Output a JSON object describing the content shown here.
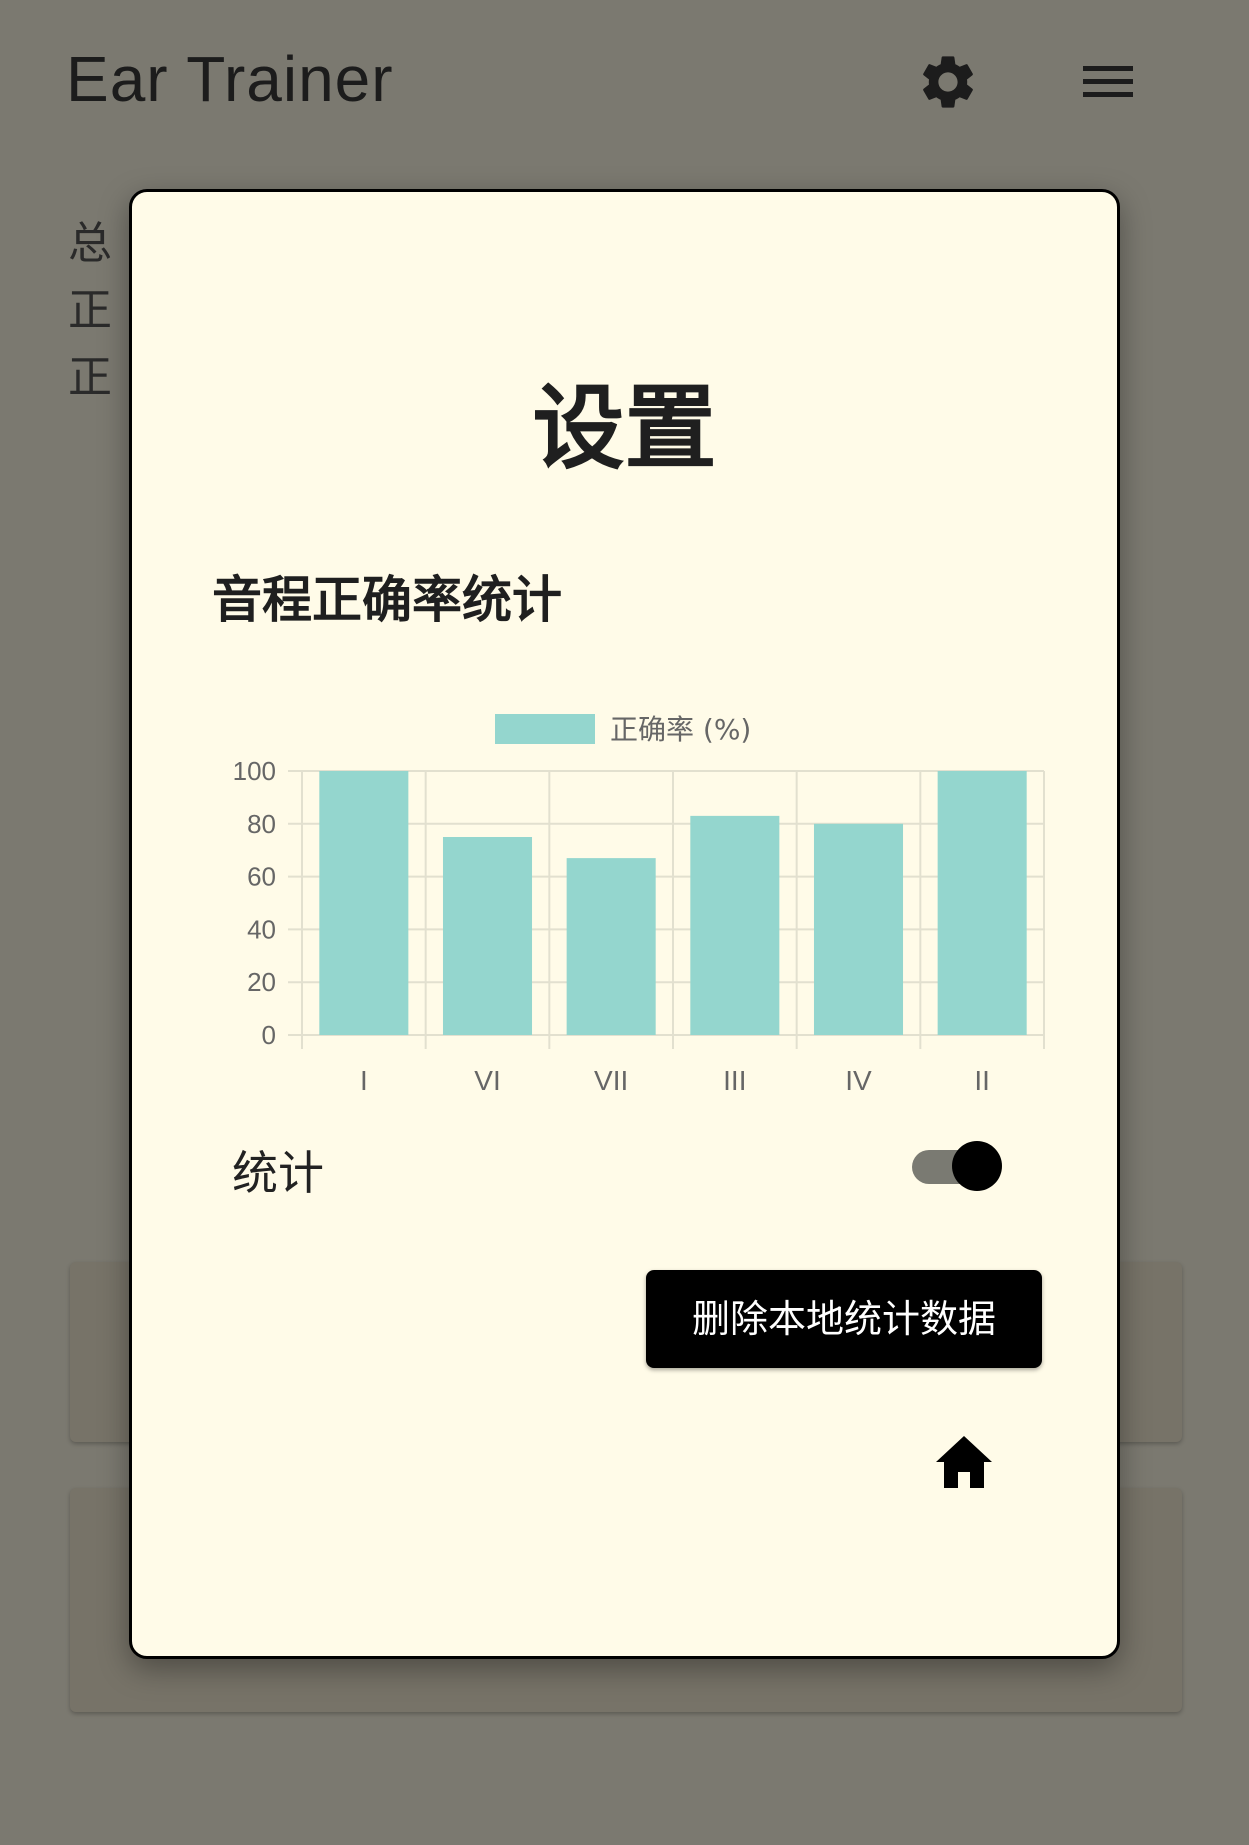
{
  "app": {
    "title": "Ear Trainer",
    "icons": {
      "settings": "gear-icon",
      "menu": "hamburger-menu-icon"
    },
    "stats_lines": [
      "总",
      "正",
      "正"
    ]
  },
  "modal": {
    "title": "设置",
    "section_title": "音程正确率统计",
    "toggle_label": "统计",
    "toggle_on": true,
    "delete_button": "删除本地统计数据",
    "home_icon": "home-icon"
  },
  "chart_data": {
    "type": "bar",
    "categories": [
      "I",
      "VI",
      "VII",
      "III",
      "IV",
      "II"
    ],
    "series": [
      {
        "name": "正确率 (%)",
        "values": [
          100,
          75,
          67,
          83,
          80,
          100
        ]
      }
    ],
    "ylim": [
      0,
      100
    ],
    "yticks": [
      0,
      20,
      40,
      60,
      80,
      100
    ],
    "grid": true,
    "legend_position": "top",
    "colors": {
      "bar": "#94d6ce",
      "grid": "#e2e0cf",
      "axis_text": "#666666"
    }
  }
}
